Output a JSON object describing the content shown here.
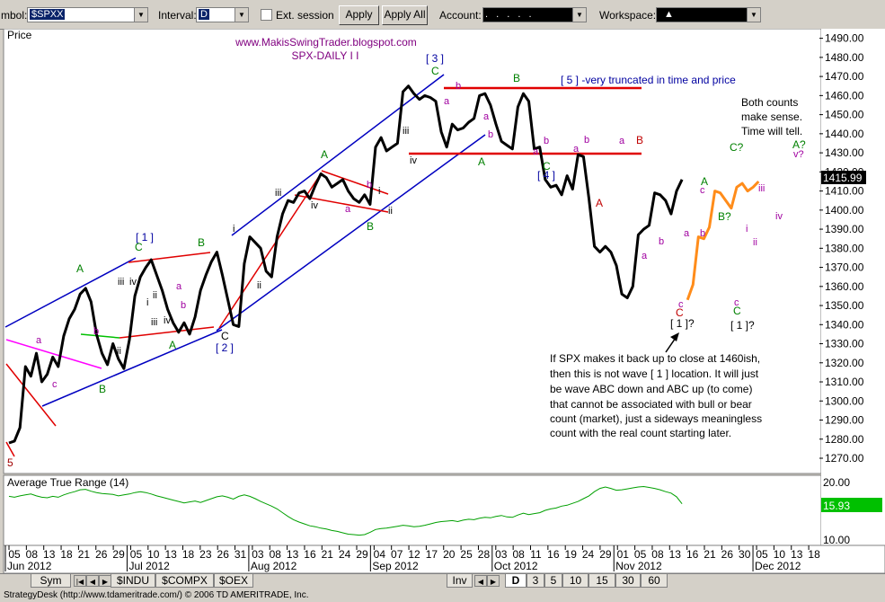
{
  "toolbar": {
    "symbol_label": "mbol:",
    "symbol_value": "$SPXX",
    "interval_label": "Interval:",
    "interval_value": "D",
    "ext_session_label": "Ext. session",
    "apply_label": "Apply",
    "apply_all_label": "Apply All",
    "account_label": "Account:",
    "account_value": ". . . . .",
    "workspace_label": "Workspace:",
    "workspace_value": "▲"
  },
  "chart_data": {
    "type": "line",
    "price_panel": {
      "title": "Price",
      "header_lines": [
        "www.MakisSwingTrader.blogspot.com",
        "SPX-DAILY I I"
      ],
      "ylim": [
        1262,
        1495
      ],
      "y_ticks": [
        1270,
        1280,
        1290,
        1300,
        1310,
        1320,
        1330,
        1340,
        1350,
        1360,
        1370,
        1380,
        1390,
        1400,
        1410,
        1420,
        1430,
        1440,
        1450,
        1460,
        1470,
        1480,
        1490
      ],
      "y_tick_labels": [
        "1270.00",
        "1280.00",
        "1290.00",
        "1300.00",
        "1310.00",
        "1320.00",
        "1330.00",
        "1340.00",
        "1350.00",
        "1360.00",
        "1370.00",
        "1380.00",
        "1390.00",
        "1400.00",
        "1410.00",
        "1420.00",
        "1430.00",
        "1440.00",
        "1450.00",
        "1460.00",
        "1470.00",
        "1480.00",
        "1490.00"
      ],
      "last_value_label": "1415.99",
      "last_value": 1415.99,
      "series": [
        {
          "color": "#000000",
          "points": [
            [
              0,
              1278
            ],
            [
              1,
              1279
            ],
            [
              2,
              1286
            ],
            [
              3,
              1318
            ],
            [
              4,
              1313
            ],
            [
              5,
              1325
            ],
            [
              6,
              1310
            ],
            [
              7,
              1314
            ],
            [
              8,
              1323
            ],
            [
              9,
              1318
            ],
            [
              10,
              1334
            ],
            [
              11,
              1343
            ],
            [
              12,
              1348
            ],
            [
              13,
              1356
            ],
            [
              14,
              1359
            ],
            [
              15,
              1352
            ],
            [
              16,
              1335
            ],
            [
              17,
              1325
            ],
            [
              18,
              1319
            ],
            [
              19,
              1330
            ],
            [
              20,
              1322
            ],
            [
              21,
              1317
            ],
            [
              22,
              1332
            ],
            [
              23,
              1355
            ],
            [
              24,
              1365
            ],
            [
              25,
              1370
            ],
            [
              26,
              1374
            ],
            [
              27,
              1366
            ],
            [
              28,
              1358
            ],
            [
              29,
              1348
            ],
            [
              30,
              1341
            ],
            [
              31,
              1336
            ],
            [
              32,
              1341
            ],
            [
              33,
              1335
            ],
            [
              34,
              1344
            ],
            [
              35,
              1358
            ],
            [
              36,
              1366
            ],
            [
              37,
              1373
            ],
            [
              38,
              1378
            ],
            [
              39,
              1366
            ],
            [
              40,
              1353
            ],
            [
              41,
              1340
            ],
            [
              42,
              1339
            ],
            [
              43,
              1372
            ],
            [
              44,
              1386
            ],
            [
              45,
              1383
            ],
            [
              46,
              1380
            ],
            [
              47,
              1368
            ],
            [
              48,
              1365
            ],
            [
              49,
              1386
            ],
            [
              50,
              1398
            ],
            [
              51,
              1405
            ],
            [
              52,
              1404
            ],
            [
              53,
              1409
            ],
            [
              54,
              1410
            ],
            [
              55,
              1406
            ],
            [
              56,
              1413
            ],
            [
              57,
              1419
            ],
            [
              58,
              1417
            ],
            [
              59,
              1412
            ],
            [
              60,
              1414
            ],
            [
              61,
              1416
            ],
            [
              62,
              1410
            ],
            [
              63,
              1406
            ],
            [
              64,
              1404
            ],
            [
              65,
              1408
            ],
            [
              66,
              1403
            ],
            [
              67,
              1433
            ],
            [
              68,
              1438
            ],
            [
              69,
              1431
            ],
            [
              70,
              1433
            ],
            [
              71,
              1435
            ],
            [
              72,
              1462
            ],
            [
              73,
              1465
            ],
            [
              74,
              1461
            ],
            [
              75,
              1458
            ],
            [
              76,
              1460
            ],
            [
              77,
              1459
            ],
            [
              78,
              1457
            ],
            [
              79,
              1441
            ],
            [
              80,
              1433
            ],
            [
              81,
              1445
            ],
            [
              82,
              1442
            ],
            [
              83,
              1443
            ],
            [
              84,
              1446
            ],
            [
              85,
              1448
            ],
            [
              86,
              1460
            ],
            [
              87,
              1461
            ],
            [
              88,
              1455
            ],
            [
              89,
              1445
            ],
            [
              90,
              1436
            ],
            [
              91,
              1434
            ],
            [
              92,
              1432
            ],
            [
              93,
              1454
            ],
            [
              94,
              1461
            ],
            [
              95,
              1457
            ],
            [
              96,
              1432
            ],
            [
              97,
              1433
            ],
            [
              98,
              1416
            ],
            [
              99,
              1412
            ],
            [
              100,
              1413
            ],
            [
              101,
              1408
            ],
            [
              102,
              1418
            ],
            [
              103,
              1411
            ],
            [
              104,
              1429
            ],
            [
              105,
              1428
            ],
            [
              106,
              1406
            ],
            [
              107,
              1381
            ],
            [
              108,
              1378
            ],
            [
              109,
              1381
            ],
            [
              110,
              1378
            ],
            [
              111,
              1371
            ],
            [
              112,
              1356
            ],
            [
              113,
              1354
            ],
            [
              114,
              1360
            ],
            [
              115,
              1387
            ],
            [
              116,
              1390
            ],
            [
              117,
              1392
            ],
            [
              118,
              1409
            ],
            [
              119,
              1408
            ],
            [
              120,
              1405
            ],
            [
              121,
              1398
            ],
            [
              122,
              1410
            ],
            [
              123,
              1416
            ]
          ]
        },
        {
          "color": "#ff8c1a",
          "points": [
            [
              124,
              1353
            ],
            [
              125,
              1361
            ],
            [
              126,
              1386
            ],
            [
              127,
              1385
            ],
            [
              128,
              1391
            ],
            [
              129,
              1410
            ],
            [
              130,
              1409
            ],
            [
              131,
              1405
            ],
            [
              132,
              1401
            ],
            [
              133,
              1412
            ],
            [
              134,
              1414
            ],
            [
              135,
              1410
            ],
            [
              136,
              1412
            ],
            [
              137,
              1415
            ]
          ]
        }
      ],
      "wave_labels": [
        "[ 1 ]",
        "[ 2 ]",
        "[ 3 ]",
        "[ 4 ]",
        "[ 1 ]?",
        "[ 1 ]?",
        "[ 5 ] -very truncated in time and price",
        "5",
        "A",
        "B",
        "C",
        "C?",
        "A?",
        "B?",
        "v?",
        "i",
        "ii",
        "iii",
        "iv",
        "a",
        "b",
        "c"
      ],
      "annotations": [
        "Both counts",
        "make sense.",
        "Time will tell.",
        "If SPX makes it back up to close at 1460ish,",
        "then this is not wave [ 1 ] location. It will just",
        "be wave ABC down and ABC up (to come)",
        "that cannot be associated with bull or bear",
        "count (market), just a sideways meaningless",
        "count with the real count starting later."
      ]
    },
    "atr_panel": {
      "title": "Average True Range (14)",
      "ylim": [
        7,
        22
      ],
      "y_tick_labels": [
        "20.00",
        "10.00"
      ],
      "last_value_label": "15.93",
      "values": [
        17.5,
        17.3,
        17.6,
        17.8,
        18.0,
        17.6,
        17.3,
        17.2,
        17.5,
        17.3,
        17.8,
        18.2,
        18.5,
        18.9,
        19.0,
        18.6,
        18.3,
        18.1,
        18.0,
        17.9,
        17.6,
        17.8,
        18.0,
        18.3,
        18.5,
        18.3,
        18.0,
        17.6,
        17.3,
        17.0,
        16.7,
        16.4,
        16.1,
        16.3,
        16.5,
        16.2,
        16.6,
        17.0,
        17.4,
        17.6,
        17.3,
        16.9,
        17.5,
        17.8,
        17.5,
        17.0,
        16.4,
        15.9,
        15.4,
        14.8,
        14.0,
        13.2,
        12.5,
        12.0,
        11.6,
        11.2,
        11.0,
        10.7,
        10.5,
        10.2,
        10.0,
        9.7,
        9.4,
        9.3,
        9.2,
        9.3,
        9.8,
        10.4,
        10.6,
        10.7,
        10.9,
        11.1,
        11.3,
        11.2,
        11.0,
        11.1,
        11.3,
        11.6,
        11.9,
        12.1,
        12.2,
        12.3,
        12.1,
        12.4,
        12.6,
        12.5,
        12.8,
        13.0,
        12.9,
        13.2,
        13.4,
        13.1,
        13.0,
        13.5,
        13.9,
        13.6,
        13.8,
        14.0,
        14.5,
        14.8,
        15.0,
        15.4,
        15.6,
        16.0,
        16.4,
        17.0,
        17.6,
        18.5,
        19.2,
        19.5,
        19.2,
        18.8,
        18.9,
        19.1,
        19.3,
        19.5,
        19.6,
        19.4,
        19.2,
        18.9,
        18.5,
        18.2,
        17.4,
        15.9
      ]
    },
    "x_ticks": {
      "day_labels": [
        "05",
        "08",
        "13",
        "18",
        "21",
        "26",
        "29",
        "05",
        "10",
        "13",
        "18",
        "23",
        "26",
        "31",
        "03",
        "08",
        "13",
        "16",
        "21",
        "24",
        "29",
        "04",
        "07",
        "12",
        "17",
        "20",
        "25",
        "28",
        "03",
        "08",
        "11",
        "16",
        "19",
        "24",
        "29",
        "01",
        "05",
        "08",
        "13",
        "16",
        "21",
        "26",
        "30",
        "05",
        "10",
        "13",
        "18"
      ],
      "month_labels": [
        "Jun 2012",
        "Jul 2012",
        "Aug 2012",
        "Sep 2012",
        "Oct 2012",
        "Nov 2012",
        "Dec 2012"
      ]
    }
  },
  "tabs": {
    "sym_label": "Sym",
    "symbols": [
      "$INDU",
      "$COMPX",
      "$OEX"
    ],
    "inv_label": "Inv",
    "intervals": [
      "D",
      "3",
      "5",
      "10",
      "15",
      "30",
      "60"
    ]
  },
  "status": {
    "text": "StrategyDesk (http://www.tdameritrade.com/) © 2006 TD AMERITRADE, Inc."
  }
}
